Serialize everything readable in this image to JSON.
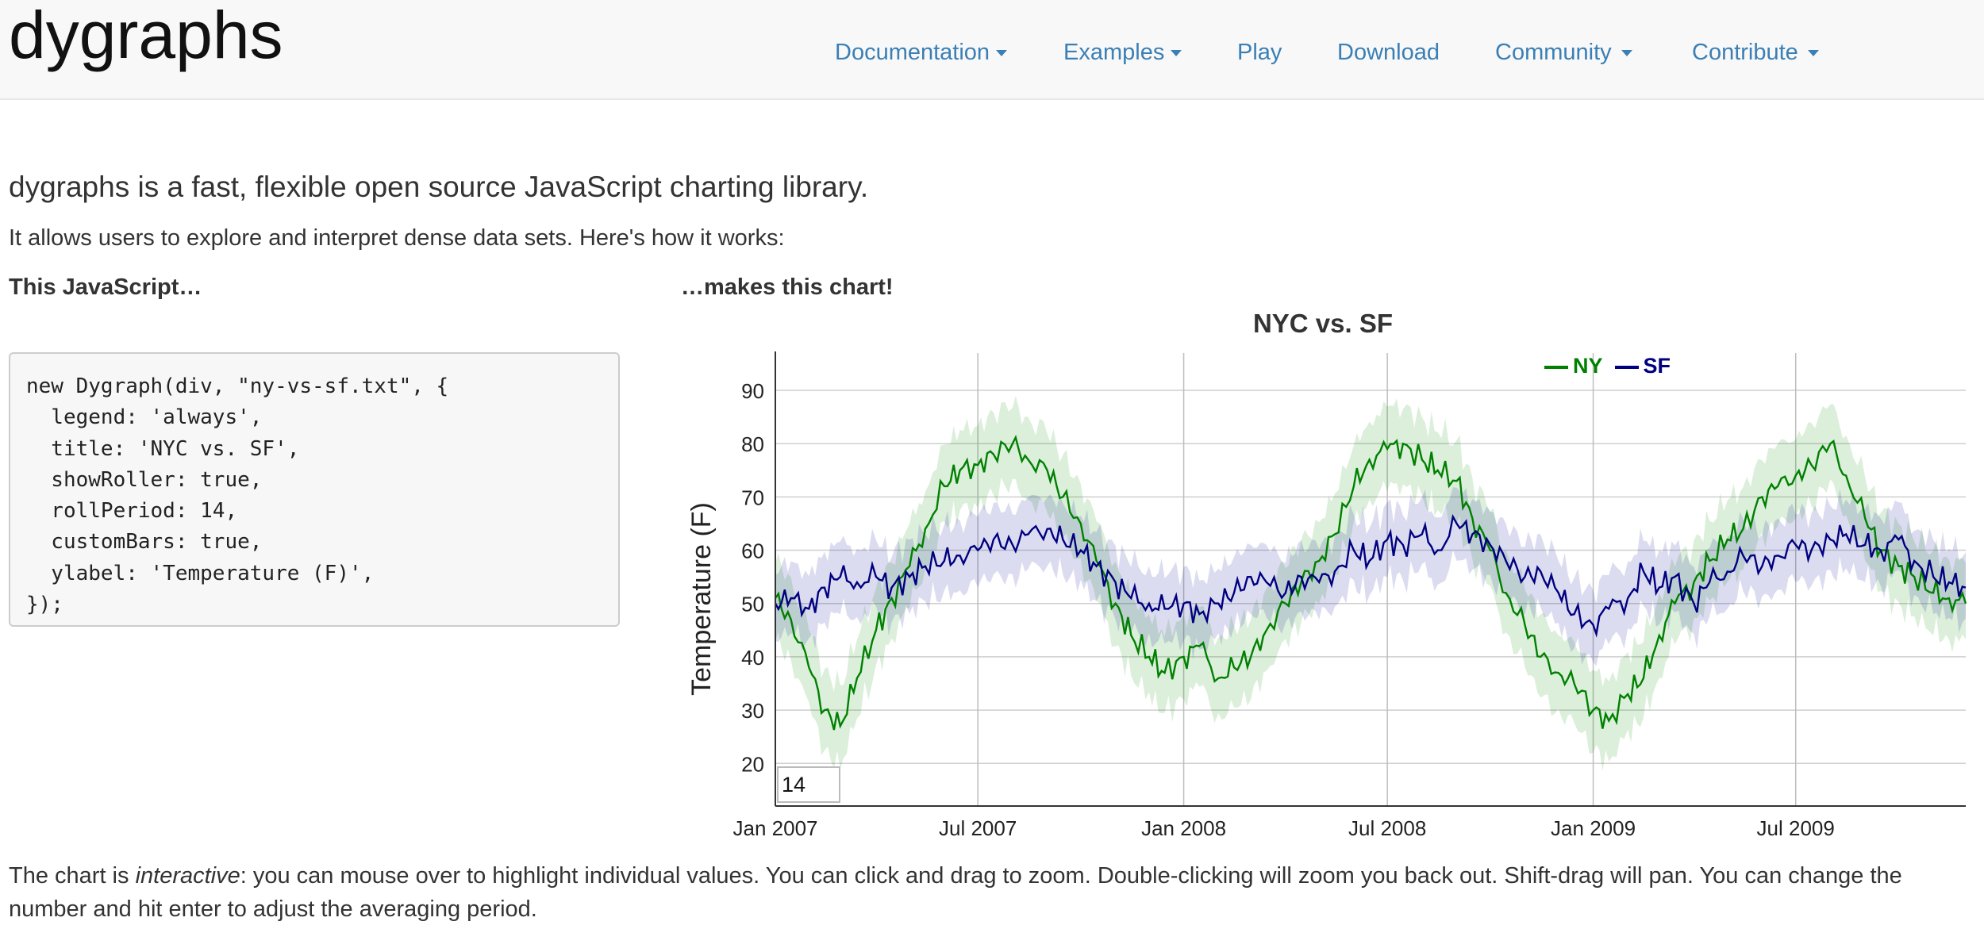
{
  "header": {
    "brand": "dygraphs",
    "nav": [
      {
        "label": "Documentation",
        "dropdown": true
      },
      {
        "label": "Examples",
        "dropdown": true
      },
      {
        "label": "Play",
        "dropdown": false
      },
      {
        "label": "Download",
        "dropdown": false
      },
      {
        "label": "Community",
        "dropdown": true
      },
      {
        "label": "Contribute",
        "dropdown": true
      }
    ]
  },
  "main": {
    "lead": "dygraphs is a fast, flexible open source JavaScript charting library.",
    "intro": "It allows users to explore and interpret dense data sets. Here's how it works:",
    "left_heading": "This JavaScript…",
    "right_heading": "…makes this chart!",
    "code_lines": [
      "new Dygraph(div, \"ny-vs-sf.txt\", {",
      "  legend: 'always',",
      "  title: 'NYC vs. SF',",
      "  showRoller: true,",
      "  rollPeriod: 14,",
      "  customBars: true,",
      "  ylabel: 'Temperature (F)',",
      "});"
    ],
    "footer_before": "The chart is ",
    "footer_em": "interactive",
    "footer_after": ": you can mouse over to highlight individual values. You can click and drag to zoom. Double-clicking will zoom you back out. Shift-drag will pan. You can change the number and hit enter to adjust the averaging period."
  },
  "roller": {
    "value": "14"
  },
  "colors": {
    "ny": "#008000",
    "sf": "#000080",
    "link": "#3a7fb5"
  },
  "chart_data": {
    "type": "line",
    "title": "NYC vs. SF",
    "ylabel": "Temperature (F)",
    "xlabel": "",
    "x_ticks": [
      "Jan 2007",
      "Jul 2007",
      "Jan 2008",
      "Jul 2008",
      "Jan 2009",
      "Jul 2009"
    ],
    "y_ticks": [
      20,
      30,
      40,
      50,
      60,
      70,
      80,
      90
    ],
    "ylim": [
      12,
      97
    ],
    "x_range": [
      "2007-01-01",
      "2009-11-30"
    ],
    "grid": true,
    "legend": "top-right",
    "series": [
      {
        "name": "NY",
        "color": "#008000",
        "band": true,
        "points": [
          [
            "2007-01-01",
            51
          ],
          [
            "2007-01-15",
            47
          ],
          [
            "2007-01-31",
            38
          ],
          [
            "2007-02-14",
            30
          ],
          [
            "2007-02-28",
            27
          ],
          [
            "2007-03-15",
            36
          ],
          [
            "2007-04-01",
            45
          ],
          [
            "2007-04-15",
            51
          ],
          [
            "2007-05-01",
            57
          ],
          [
            "2007-05-15",
            64
          ],
          [
            "2007-06-01",
            72
          ],
          [
            "2007-06-15",
            75
          ],
          [
            "2007-07-01",
            76
          ],
          [
            "2007-07-15",
            78
          ],
          [
            "2007-08-01",
            80
          ],
          [
            "2007-08-15",
            77
          ],
          [
            "2007-09-01",
            75
          ],
          [
            "2007-09-15",
            70
          ],
          [
            "2007-10-01",
            65
          ],
          [
            "2007-10-15",
            58
          ],
          [
            "2007-11-01",
            50
          ],
          [
            "2007-11-15",
            44
          ],
          [
            "2007-12-01",
            40
          ],
          [
            "2007-12-15",
            37
          ],
          [
            "2008-01-01",
            40
          ],
          [
            "2008-01-15",
            42
          ],
          [
            "2008-02-01",
            36
          ],
          [
            "2008-02-15",
            38
          ],
          [
            "2008-03-01",
            40
          ],
          [
            "2008-03-15",
            45
          ],
          [
            "2008-04-01",
            50
          ],
          [
            "2008-04-15",
            54
          ],
          [
            "2008-05-01",
            58
          ],
          [
            "2008-05-15",
            63
          ],
          [
            "2008-06-01",
            72
          ],
          [
            "2008-06-15",
            77
          ],
          [
            "2008-07-01",
            79
          ],
          [
            "2008-07-15",
            80
          ],
          [
            "2008-08-01",
            77
          ],
          [
            "2008-08-15",
            75
          ],
          [
            "2008-09-01",
            73
          ],
          [
            "2008-09-15",
            66
          ],
          [
            "2008-10-01",
            60
          ],
          [
            "2008-10-15",
            52
          ],
          [
            "2008-11-01",
            46
          ],
          [
            "2008-11-15",
            40
          ],
          [
            "2008-12-01",
            37
          ],
          [
            "2008-12-15",
            35
          ],
          [
            "2009-01-01",
            30
          ],
          [
            "2009-01-15",
            28
          ],
          [
            "2009-02-01",
            33
          ],
          [
            "2009-02-15",
            36
          ],
          [
            "2009-03-01",
            44
          ],
          [
            "2009-03-15",
            50
          ],
          [
            "2009-04-01",
            54
          ],
          [
            "2009-04-15",
            58
          ],
          [
            "2009-05-01",
            62
          ],
          [
            "2009-05-15",
            64
          ],
          [
            "2009-06-01",
            70
          ],
          [
            "2009-06-15",
            72
          ],
          [
            "2009-07-01",
            74
          ],
          [
            "2009-07-15",
            76
          ],
          [
            "2009-08-01",
            80
          ],
          [
            "2009-08-15",
            74
          ],
          [
            "2009-09-01",
            66
          ],
          [
            "2009-09-15",
            60
          ],
          [
            "2009-10-01",
            57
          ],
          [
            "2009-10-15",
            55
          ],
          [
            "2009-11-01",
            52
          ],
          [
            "2009-11-15",
            51
          ],
          [
            "2009-11-30",
            50
          ]
        ]
      },
      {
        "name": "SF",
        "color": "#000080",
        "band": true,
        "points": [
          [
            "2007-01-01",
            50
          ],
          [
            "2007-01-15",
            51
          ],
          [
            "2007-01-31",
            49
          ],
          [
            "2007-02-14",
            53
          ],
          [
            "2007-02-28",
            55
          ],
          [
            "2007-03-15",
            54
          ],
          [
            "2007-04-01",
            55
          ],
          [
            "2007-04-15",
            53
          ],
          [
            "2007-05-01",
            55
          ],
          [
            "2007-05-15",
            57
          ],
          [
            "2007-06-01",
            58
          ],
          [
            "2007-06-15",
            59
          ],
          [
            "2007-07-01",
            60
          ],
          [
            "2007-07-15",
            62
          ],
          [
            "2007-08-01",
            61
          ],
          [
            "2007-08-15",
            63
          ],
          [
            "2007-09-01",
            64
          ],
          [
            "2007-09-15",
            62
          ],
          [
            "2007-10-01",
            60
          ],
          [
            "2007-10-15",
            57
          ],
          [
            "2007-11-01",
            54
          ],
          [
            "2007-11-15",
            51
          ],
          [
            "2007-12-01",
            50
          ],
          [
            "2007-12-15",
            49
          ],
          [
            "2008-01-01",
            50
          ],
          [
            "2008-01-15",
            48
          ],
          [
            "2008-02-01",
            50
          ],
          [
            "2008-02-15",
            52
          ],
          [
            "2008-03-01",
            55
          ],
          [
            "2008-03-15",
            54
          ],
          [
            "2008-04-01",
            52
          ],
          [
            "2008-04-15",
            55
          ],
          [
            "2008-05-01",
            54
          ],
          [
            "2008-05-15",
            56
          ],
          [
            "2008-06-01",
            60
          ],
          [
            "2008-06-15",
            58
          ],
          [
            "2008-07-01",
            62
          ],
          [
            "2008-07-15",
            61
          ],
          [
            "2008-08-01",
            63
          ],
          [
            "2008-08-15",
            60
          ],
          [
            "2008-09-01",
            65
          ],
          [
            "2008-09-15",
            63
          ],
          [
            "2008-10-01",
            61
          ],
          [
            "2008-10-15",
            58
          ],
          [
            "2008-11-01",
            55
          ],
          [
            "2008-11-15",
            56
          ],
          [
            "2008-12-01",
            52
          ],
          [
            "2008-12-15",
            48
          ],
          [
            "2009-01-01",
            46
          ],
          [
            "2009-01-15",
            49
          ],
          [
            "2009-02-01",
            51
          ],
          [
            "2009-02-15",
            56
          ],
          [
            "2009-03-01",
            53
          ],
          [
            "2009-03-15",
            55
          ],
          [
            "2009-04-01",
            50
          ],
          [
            "2009-04-15",
            54
          ],
          [
            "2009-05-01",
            56
          ],
          [
            "2009-05-15",
            59
          ],
          [
            "2009-06-01",
            57
          ],
          [
            "2009-06-15",
            59
          ],
          [
            "2009-07-01",
            61
          ],
          [
            "2009-07-15",
            60
          ],
          [
            "2009-08-01",
            62
          ],
          [
            "2009-08-15",
            63
          ],
          [
            "2009-09-01",
            61
          ],
          [
            "2009-09-15",
            60
          ],
          [
            "2009-10-01",
            62
          ],
          [
            "2009-10-15",
            58
          ],
          [
            "2009-11-01",
            55
          ],
          [
            "2009-11-15",
            54
          ],
          [
            "2009-11-30",
            53
          ]
        ]
      }
    ]
  }
}
